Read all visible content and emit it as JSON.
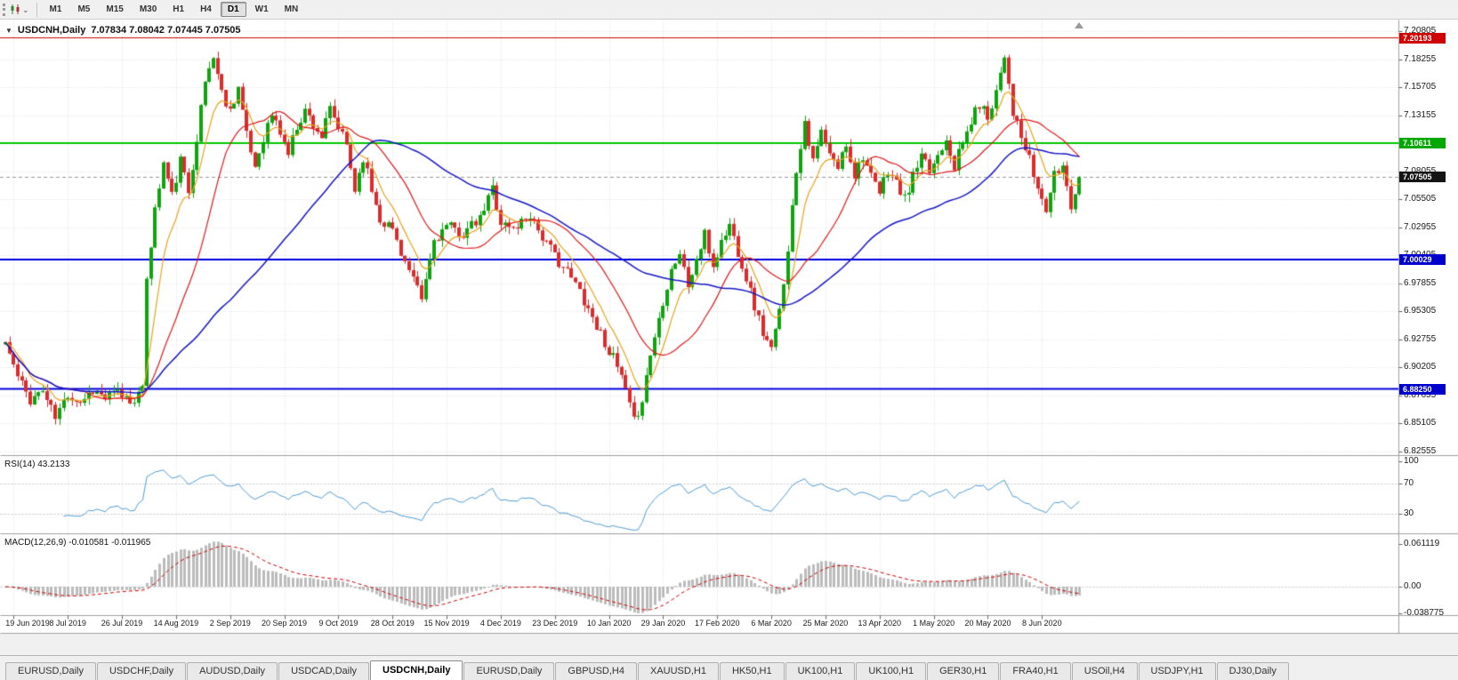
{
  "icons": {
    "collapse_triangle": "▼",
    "caret": "⌄"
  },
  "toolbar": {
    "timeframes": [
      "M1",
      "M5",
      "M15",
      "M30",
      "H1",
      "H4",
      "D1",
      "W1",
      "MN"
    ],
    "active_timeframe": "D1"
  },
  "chart": {
    "title_symbol": "USDCNH,Daily",
    "ohlc_text": "7.07834 7.08042 7.07445 7.07505",
    "open": "7.07834",
    "high": "7.08042",
    "low": "7.07445",
    "close": "7.07505"
  },
  "price_axis": {
    "ticks": [
      "7.20805",
      "7.18255",
      "7.15705",
      "7.13155",
      "7.10605",
      "7.08055",
      "7.05505",
      "7.02955",
      "7.00405",
      "6.97855",
      "6.95305",
      "6.92755",
      "6.90205",
      "6.87655",
      "6.85105",
      "6.82555"
    ],
    "badges": [
      {
        "text": "7.20193",
        "price": 7.20193,
        "color": "#D00000"
      },
      {
        "text": "7.10611",
        "price": 7.10611,
        "color": "#00A800"
      },
      {
        "text": "7.07505",
        "price": 7.07505,
        "color": "#141414"
      },
      {
        "text": "7.00029",
        "price": 7.00029,
        "color": "#0000CC"
      },
      {
        "text": "6.88250",
        "price": 6.8825,
        "color": "#0000CC"
      }
    ]
  },
  "date_axis": {
    "labels": [
      "19 Jun 2019",
      "8 Jul 2019",
      "26 Jul 2019",
      "14 Aug 2019",
      "2 Sep 2019",
      "20 Sep 2019",
      "9 Oct 2019",
      "28 Oct 2019",
      "15 Nov 2019",
      "4 Dec 2019",
      "23 Dec 2019",
      "10 Jan 2020",
      "29 Jan 2020",
      "17 Feb 2020",
      "6 Mar 2020",
      "25 Mar 2020",
      "13 Apr 2020",
      "1 May 2020",
      "20 May 2020",
      "8 Jun 2020"
    ]
  },
  "rsi_pane": {
    "label": "RSI(14) 43.2133",
    "axis_labels": [
      "100",
      "70",
      "30"
    ],
    "levels": [
      70,
      30
    ],
    "line_color": "#4E9CD6"
  },
  "macd_pane": {
    "label": "MACD(12,26,9) -0.010581 -0.011965",
    "axis_labels": [
      "0.061119",
      "0.00",
      "-0.038775"
    ],
    "hist_color": "#BBBBBB",
    "signal_color": "#CC0000"
  },
  "tabs": [
    {
      "label": "EURUSD,Daily",
      "active": false
    },
    {
      "label": "USDCHF,Daily",
      "active": false
    },
    {
      "label": "AUDUSD,Daily",
      "active": false
    },
    {
      "label": "USDCAD,Daily",
      "active": false
    },
    {
      "label": "USDCNH,Daily",
      "active": true
    },
    {
      "label": "EURUSD,Daily",
      "active": false
    },
    {
      "label": "GBPUSD,H4",
      "active": false
    },
    {
      "label": "XAUUSD,H1",
      "active": false
    },
    {
      "label": "HK50,H1",
      "active": false
    },
    {
      "label": "UK100,H1",
      "active": false
    },
    {
      "label": "UK100,H1",
      "active": false
    },
    {
      "label": "GER30,H1",
      "active": false
    },
    {
      "label": "FRA40,H1",
      "active": false
    },
    {
      "label": "USOil,H4",
      "active": false
    },
    {
      "label": "USDJPY,H1",
      "active": false
    },
    {
      "label": "DJ30,Daily",
      "active": false
    }
  ],
  "chart_data": {
    "type": "candlestick",
    "symbol": "USDCNH",
    "timeframe": "Daily",
    "bars": 259,
    "last_close": 7.07505,
    "seed": 11,
    "noise_amp": 0.0055,
    "wick_amp": 0.007,
    "up_color": "#0FA30F",
    "down_color": "#DD2A2A",
    "price_axis_range": {
      "top_tick": 7.20805,
      "tick_step": 0.0255,
      "ticks": 16
    },
    "date_label_first_bar": 2,
    "date_label_step": 13,
    "close_anchors": [
      [
        0,
        6.925
      ],
      [
        3,
        6.893
      ],
      [
        6,
        6.873
      ],
      [
        9,
        6.881
      ],
      [
        12,
        6.856
      ],
      [
        15,
        6.878
      ],
      [
        18,
        6.871
      ],
      [
        21,
        6.882
      ],
      [
        24,
        6.874
      ],
      [
        27,
        6.879
      ],
      [
        30,
        6.872
      ],
      [
        33,
        6.88
      ],
      [
        34,
        6.985
      ],
      [
        36,
        7.045
      ],
      [
        38,
        7.088
      ],
      [
        40,
        7.058
      ],
      [
        42,
        7.09
      ],
      [
        44,
        7.062
      ],
      [
        46,
        7.112
      ],
      [
        48,
        7.162
      ],
      [
        50,
        7.186
      ],
      [
        52,
        7.152
      ],
      [
        54,
        7.136
      ],
      [
        56,
        7.158
      ],
      [
        58,
        7.112
      ],
      [
        60,
        7.085
      ],
      [
        62,
        7.112
      ],
      [
        64,
        7.132
      ],
      [
        66,
        7.116
      ],
      [
        68,
        7.097
      ],
      [
        70,
        7.122
      ],
      [
        72,
        7.136
      ],
      [
        74,
        7.124
      ],
      [
        76,
        7.112
      ],
      [
        78,
        7.136
      ],
      [
        80,
        7.12
      ],
      [
        82,
        7.104
      ],
      [
        84,
        7.064
      ],
      [
        86,
        7.094
      ],
      [
        88,
        7.064
      ],
      [
        90,
        7.038
      ],
      [
        93,
        7.028
      ],
      [
        96,
        6.998
      ],
      [
        100,
        6.963
      ],
      [
        103,
        7.018
      ],
      [
        106,
        7.03
      ],
      [
        110,
        7.024
      ],
      [
        114,
        7.036
      ],
      [
        117,
        7.066
      ],
      [
        119,
        7.034
      ],
      [
        122,
        7.028
      ],
      [
        126,
        7.042
      ],
      [
        130,
        7.014
      ],
      [
        134,
        6.994
      ],
      [
        138,
        6.972
      ],
      [
        142,
        6.94
      ],
      [
        145,
        6.918
      ],
      [
        148,
        6.893
      ],
      [
        151,
        6.852
      ],
      [
        153,
        6.874
      ],
      [
        155,
        6.914
      ],
      [
        158,
        6.963
      ],
      [
        160,
        6.992
      ],
      [
        162,
        7.006
      ],
      [
        164,
        6.976
      ],
      [
        166,
        7.0
      ],
      [
        168,
        7.022
      ],
      [
        170,
        6.994
      ],
      [
        172,
        7.016
      ],
      [
        174,
        7.032
      ],
      [
        176,
        7.008
      ],
      [
        178,
        6.984
      ],
      [
        180,
        6.958
      ],
      [
        182,
        6.934
      ],
      [
        184,
        6.917
      ],
      [
        186,
        6.952
      ],
      [
        188,
        7.012
      ],
      [
        190,
        7.082
      ],
      [
        192,
        7.128
      ],
      [
        194,
        7.088
      ],
      [
        196,
        7.116
      ],
      [
        198,
        7.094
      ],
      [
        200,
        7.084
      ],
      [
        202,
        7.106
      ],
      [
        204,
        7.078
      ],
      [
        206,
        7.096
      ],
      [
        208,
        7.074
      ],
      [
        210,
        7.06
      ],
      [
        212,
        7.082
      ],
      [
        214,
        7.07
      ],
      [
        216,
        7.054
      ],
      [
        218,
        7.076
      ],
      [
        220,
        7.092
      ],
      [
        222,
        7.08
      ],
      [
        224,
        7.096
      ],
      [
        226,
        7.112
      ],
      [
        228,
        7.086
      ],
      [
        230,
        7.106
      ],
      [
        232,
        7.126
      ],
      [
        234,
        7.142
      ],
      [
        236,
        7.13
      ],
      [
        238,
        7.155
      ],
      [
        240,
        7.188
      ],
      [
        242,
        7.135
      ],
      [
        244,
        7.11
      ],
      [
        246,
        7.09
      ],
      [
        248,
        7.064
      ],
      [
        250,
        7.046
      ],
      [
        252,
        7.076
      ],
      [
        254,
        7.086
      ],
      [
        256,
        7.05
      ],
      [
        258,
        7.07505
      ]
    ],
    "moving_averages": [
      {
        "name": "fast",
        "type": "ema",
        "period": 8,
        "color": "#E8A31E"
      },
      {
        "name": "mid",
        "type": "sma",
        "period": 20,
        "color": "#E01818"
      },
      {
        "name": "slow",
        "type": "sma",
        "period": 55,
        "color": "#1616C8"
      }
    ],
    "hlines": [
      {
        "price": 7.20193,
        "color": "#CC0000",
        "width": 1
      },
      {
        "price": 7.10611,
        "color": "#00C800",
        "width": 2
      },
      {
        "price": 7.00029,
        "color": "#0000E0",
        "width": 2
      },
      {
        "price": 6.8825,
        "color": "#0000E0",
        "width": 2
      }
    ],
    "current_price_line": {
      "price": 7.07505,
      "color": "#9A9A9A"
    },
    "rsi": {
      "period": 14,
      "current": 43.2133
    },
    "macd": {
      "fast": 12,
      "slow": 26,
      "signal": 9,
      "macd_value": -0.010581,
      "signal_value": -0.011965
    }
  }
}
